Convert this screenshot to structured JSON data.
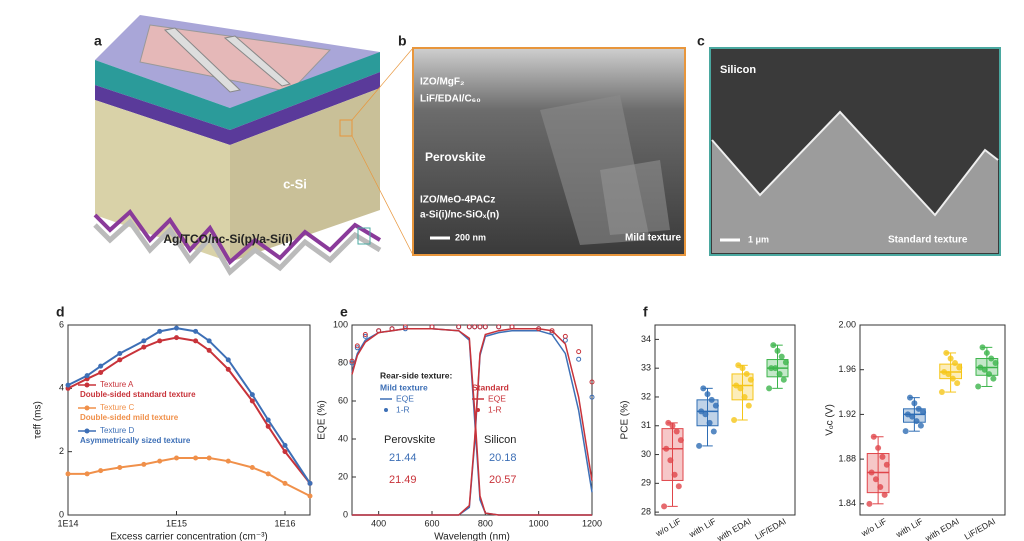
{
  "figure": {
    "panels": {
      "a": {
        "label": "a",
        "texts": [
          "c-Si",
          "Ag/TCO/nc-Si(p)/a-Si(i)"
        ]
      },
      "b": {
        "label": "b",
        "texts": [
          "IZO/MgF₂",
          "LiF/EDAI/C₆₀",
          "Perovskite",
          "IZO/MeO-4PACz",
          "a-Si(i)/nc-SiOₓ(n)"
        ],
        "scale_bar": "200 nm",
        "texture": "Mild texture"
      },
      "c": {
        "label": "c",
        "title": "Silicon",
        "scale_bar": "1 μm",
        "texture": "Standard texture"
      }
    }
  },
  "chart_data": [
    {
      "type": "line",
      "panel_label": "d",
      "xscale": "log",
      "xlabel": "Excess carrier concentration (cm⁻³)",
      "ylabel": "τeff (ms)",
      "x": [
        100000000000000.0,
        150000000000000.0,
        200000000000000.0,
        300000000000000.0,
        500000000000000.0,
        700000000000000.0,
        1000000000000000.0,
        1500000000000000.0,
        2000000000000000.0,
        3000000000000000.0,
        5000000000000000.0,
        7000000000000000.0,
        1e+16,
        1.7e+16
      ],
      "xlim": [
        100000000000000.0,
        1.7e+16
      ],
      "xticks": [
        {
          "value": 100000000000000.0,
          "label": "1E14"
        },
        {
          "value": 1000000000000000.0,
          "label": "1E15"
        },
        {
          "value": 1e+16,
          "label": "1E16"
        }
      ],
      "ylim": [
        0,
        6
      ],
      "yticks": [
        0,
        2,
        4,
        6
      ],
      "series": [
        {
          "name": "Texture A",
          "description": "Double-sided standard texture",
          "color": "#c8333a",
          "values": [
            4.0,
            4.3,
            4.5,
            4.9,
            5.3,
            5.5,
            5.6,
            5.5,
            5.2,
            4.6,
            3.6,
            2.8,
            2.0,
            1.0
          ]
        },
        {
          "name": "Texture C",
          "description": "Double-sided mild texture",
          "color": "#f0904a",
          "values": [
            1.3,
            1.3,
            1.4,
            1.5,
            1.6,
            1.7,
            1.8,
            1.8,
            1.8,
            1.7,
            1.5,
            1.3,
            1.0,
            0.6
          ]
        },
        {
          "name": "Texture D",
          "description": "Asymmetrically sized texture",
          "color": "#3d6fb6",
          "values": [
            4.1,
            4.4,
            4.7,
            5.1,
            5.5,
            5.8,
            5.9,
            5.8,
            5.5,
            4.9,
            3.8,
            3.0,
            2.2,
            1.0
          ]
        }
      ]
    },
    {
      "type": "line",
      "panel_label": "e",
      "xlabel": "Wavelength (nm)",
      "ylabel": "EQE (%)",
      "x": [
        300,
        320,
        350,
        400,
        450,
        500,
        600,
        700,
        740,
        760,
        780,
        800,
        850,
        900,
        1000,
        1050,
        1100,
        1150,
        1200
      ],
      "xlim": [
        300,
        1200
      ],
      "xticks": [
        400,
        600,
        800,
        1000,
        1200
      ],
      "ylim": [
        0,
        100
      ],
      "yticks": [
        0,
        20,
        40,
        60,
        80,
        100
      ],
      "legend_title": "Rear-side texture:",
      "groups": [
        {
          "name": "Mild texture",
          "color": "#3d6fb6",
          "series": [
            {
              "name": "EQE",
              "style": "line",
              "values": [
                75,
                85,
                92,
                96,
                97,
                98,
                98,
                97,
                92,
                50,
                8,
                1,
                0,
                0,
                0,
                0,
                0,
                0,
                0
              ],
              "values_2": [
                0,
                0,
                0,
                0,
                0,
                0,
                0,
                0,
                4,
                38,
                84,
                94,
                96,
                97,
                97,
                95,
                85,
                55,
                12
              ]
            },
            {
              "name": "1-R",
              "style": "dots",
              "values": [
                80,
                88,
                94,
                97,
                98,
                98,
                99,
                99,
                99,
                99,
                99,
                99,
                99,
                99,
                98,
                96,
                92,
                82,
                62
              ]
            }
          ]
        },
        {
          "name": "Standard",
          "color": "#c8333a",
          "series": [
            {
              "name": "EQE",
              "style": "line",
              "values": [
                74,
                84,
                91,
                96,
                97,
                98,
                98,
                97,
                93,
                55,
                10,
                1,
                0,
                0,
                0,
                0,
                0,
                0,
                0
              ],
              "values_2": [
                0,
                0,
                0,
                0,
                0,
                0,
                0,
                0,
                5,
                40,
                85,
                95,
                97,
                98,
                98,
                97,
                90,
                62,
                18
              ]
            },
            {
              "name": "1-R",
              "style": "dots",
              "values": [
                81,
                89,
                95,
                97,
                98,
                99,
                99,
                99,
                99,
                99,
                99,
                99,
                99,
                99,
                98,
                97,
                94,
                86,
                70
              ]
            }
          ]
        }
      ],
      "annotations": [
        {
          "label": "Perovskite",
          "values": [
            21.44,
            21.49
          ]
        },
        {
          "label": "Silicon",
          "values": [
            20.18,
            20.57
          ]
        }
      ]
    },
    {
      "type": "box",
      "panel_label": "f",
      "ylabel": "PCE (%)",
      "categories": [
        "w/o LiF",
        "with LiF",
        "with EDAI",
        "LiF/EDAI"
      ],
      "colors": [
        "#e0454a",
        "#2e6db4",
        "#f5c518",
        "#3cb44b"
      ],
      "ylim": [
        27.9,
        34.5
      ],
      "yticks": [
        28,
        29,
        30,
        31,
        32,
        33,
        34
      ],
      "boxes": [
        {
          "min": 28.2,
          "q1": 29.1,
          "median": 30.2,
          "q3": 30.9,
          "max": 31.1
        },
        {
          "min": 30.3,
          "q1": 31.0,
          "median": 31.5,
          "q3": 31.9,
          "max": 32.3
        },
        {
          "min": 31.2,
          "q1": 31.9,
          "median": 32.4,
          "q3": 32.8,
          "max": 33.1
        },
        {
          "min": 32.3,
          "q1": 32.7,
          "median": 33.0,
          "q3": 33.3,
          "max": 33.8
        }
      ],
      "points": [
        [
          28.2,
          28.9,
          29.3,
          29.8,
          30.2,
          30.5,
          30.8,
          31.0,
          31.1
        ],
        [
          30.3,
          30.8,
          31.1,
          31.4,
          31.5,
          31.7,
          31.9,
          32.1,
          32.3
        ],
        [
          31.2,
          31.7,
          32.0,
          32.3,
          32.4,
          32.6,
          32.8,
          33.0,
          33.1
        ],
        [
          32.3,
          32.6,
          32.8,
          33.0,
          33.0,
          33.2,
          33.4,
          33.6,
          33.8
        ]
      ]
    },
    {
      "type": "box",
      "ylabel": "Vₒc (V)",
      "categories": [
        "w/o LiF",
        "with LiF",
        "with EDAI",
        "LiF/EDAI"
      ],
      "colors": [
        "#e0454a",
        "#2e6db4",
        "#f5c518",
        "#3cb44b"
      ],
      "ylim": [
        1.83,
        2.0
      ],
      "yticks": [
        1.84,
        1.88,
        1.92,
        1.96,
        {
          "value": 2,
          "label": "2.00"
        }
      ],
      "boxes": [
        {
          "min": 1.84,
          "q1": 1.85,
          "median": 1.868,
          "q3": 1.885,
          "max": 1.9
        },
        {
          "min": 1.905,
          "q1": 1.913,
          "median": 1.92,
          "q3": 1.925,
          "max": 1.935
        },
        {
          "min": 1.94,
          "q1": 1.952,
          "median": 1.958,
          "q3": 1.965,
          "max": 1.975
        },
        {
          "min": 1.945,
          "q1": 1.955,
          "median": 1.962,
          "q3": 1.97,
          "max": 1.98
        }
      ],
      "points": [
        [
          1.84,
          1.848,
          1.855,
          1.862,
          1.868,
          1.875,
          1.882,
          1.89,
          1.9
        ],
        [
          1.905,
          1.91,
          1.914,
          1.918,
          1.92,
          1.922,
          1.925,
          1.93,
          1.935
        ],
        [
          1.94,
          1.948,
          1.952,
          1.956,
          1.958,
          1.962,
          1.966,
          1.97,
          1.975
        ],
        [
          1.945,
          1.952,
          1.956,
          1.96,
          1.962,
          1.966,
          1.97,
          1.975,
          1.98
        ]
      ]
    }
  ]
}
